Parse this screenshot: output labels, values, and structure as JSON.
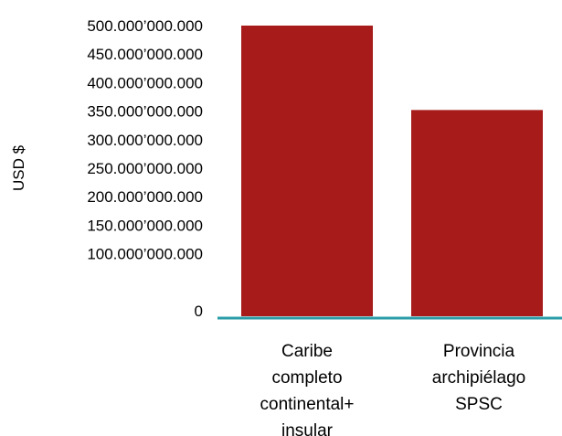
{
  "chart_data": {
    "type": "bar",
    "title": "",
    "xlabel": "",
    "ylabel": "USD $",
    "categories": [
      [
        "Caribe",
        "completo",
        "continental+",
        "insular"
      ],
      [
        "Provincia",
        "archipiélago",
        "SPSC"
      ]
    ],
    "values": [
      500000000000,
      352000000000
    ],
    "ylim": [
      0,
      500000000000
    ],
    "y_ticks": [
      0,
      100000000000,
      150000000000,
      200000000000,
      250000000000,
      300000000000,
      350000000000,
      400000000000,
      450000000000,
      500000000000
    ],
    "y_tick_labels": [
      "0",
      "100.000’000.000",
      "150.000’000.000",
      "200.000’000.000",
      "250.000’000.000",
      "300.000’000.000",
      "350.000’000.000",
      "400.000’000.000",
      "450.000’000.000",
      "500.000’000.000"
    ],
    "grid": false,
    "colors": {
      "bar": "#a71b1b",
      "x_axis": "#2a9ca8"
    }
  }
}
